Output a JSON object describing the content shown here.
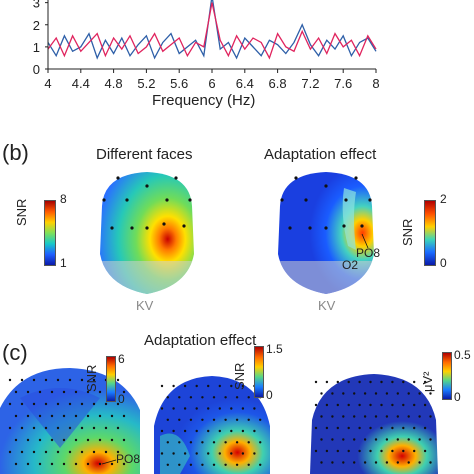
{
  "panel_a": {
    "y_ticks": [
      "0",
      "1",
      "2",
      "3"
    ],
    "x_ticks": [
      "4",
      "4.4",
      "4.8",
      "5.2",
      "5.6",
      "6",
      "6.4",
      "6.8",
      "7.2",
      "7.6",
      "8"
    ],
    "xlabel": "Frequency (Hz)",
    "colors": {
      "blue": "#2e5fa8",
      "red": "#e0245e"
    }
  },
  "panel_b": {
    "label": "(b)",
    "left": {
      "title": "Different faces",
      "cbar_label": "SNR",
      "cbar_max": "8",
      "cbar_min": "1",
      "caption": "KV"
    },
    "right": {
      "title": "Adaptation effect",
      "cbar_label": "SNR",
      "cbar_max": "2",
      "cbar_min": "0",
      "caption": "KV",
      "electrodes": [
        "PO8",
        "O2"
      ]
    }
  },
  "panel_c": {
    "label": "(c)",
    "title": "Adaptation effect",
    "map1": {
      "cbar_label": "SNR",
      "cbar_max": "6",
      "cbar_min": "0",
      "electrode": "PO8"
    },
    "map2": {
      "cbar_label": "SNR",
      "cbar_max": "1.5",
      "cbar_min": "0"
    },
    "map3": {
      "cbar_label": "μV²",
      "cbar_max": "0.5",
      "cbar_min": "0"
    }
  },
  "chart_data": {
    "type": "line",
    "x_range": [
      4,
      8
    ],
    "ylim": [
      0,
      3.3
    ],
    "xlabel": "Frequency (Hz)",
    "series": [
      {
        "color": "#2e5fa8",
        "x": [
          4.0,
          4.1,
          4.2,
          4.3,
          4.4,
          4.5,
          4.6,
          4.7,
          4.8,
          4.9,
          5.0,
          5.1,
          5.2,
          5.3,
          5.4,
          5.5,
          5.6,
          5.7,
          5.8,
          5.9,
          6.0,
          6.1,
          6.2,
          6.3,
          6.4,
          6.5,
          6.6,
          6.7,
          6.8,
          6.9,
          7.0,
          7.1,
          7.2,
          7.3,
          7.4,
          7.5,
          7.6,
          7.7,
          7.8,
          7.9,
          8.0
        ],
        "y": [
          1.2,
          0.6,
          1.5,
          0.8,
          1.0,
          1.6,
          0.5,
          1.3,
          0.7,
          1.4,
          0.6,
          1.1,
          1.5,
          0.5,
          1.2,
          1.6,
          0.7,
          1.0,
          1.3,
          0.6,
          3.3,
          0.9,
          1.2,
          0.5,
          1.4,
          1.0,
          0.6,
          1.3,
          1.1,
          0.7,
          1.2,
          2.0,
          1.1,
          0.6,
          1.3,
          0.9,
          1.5,
          0.6,
          1.2,
          1.4,
          0.8
        ]
      },
      {
        "color": "#e0245e",
        "x": [
          4.0,
          4.1,
          4.2,
          4.3,
          4.4,
          4.5,
          4.6,
          4.7,
          4.8,
          4.9,
          5.0,
          5.1,
          5.2,
          5.3,
          5.4,
          5.5,
          5.6,
          5.7,
          5.8,
          5.9,
          6.0,
          6.1,
          6.2,
          6.3,
          6.4,
          6.5,
          6.6,
          6.7,
          6.8,
          6.9,
          7.0,
          7.1,
          7.2,
          7.3,
          7.4,
          7.5,
          7.6,
          7.7,
          7.8,
          7.9,
          8.0
        ],
        "y": [
          0.9,
          1.4,
          0.6,
          1.5,
          0.8,
          1.2,
          1.6,
          0.6,
          1.4,
          0.9,
          1.5,
          0.7,
          1.0,
          1.6,
          0.8,
          1.1,
          1.4,
          0.6,
          1.2,
          1.0,
          3.0,
          1.3,
          0.6,
          1.5,
          0.9,
          1.4,
          1.2,
          0.5,
          1.6,
          1.0,
          0.8,
          1.7,
          0.9,
          1.4,
          0.7,
          1.6,
          1.0,
          1.3,
          0.6,
          1.5,
          0.9
        ]
      }
    ]
  }
}
